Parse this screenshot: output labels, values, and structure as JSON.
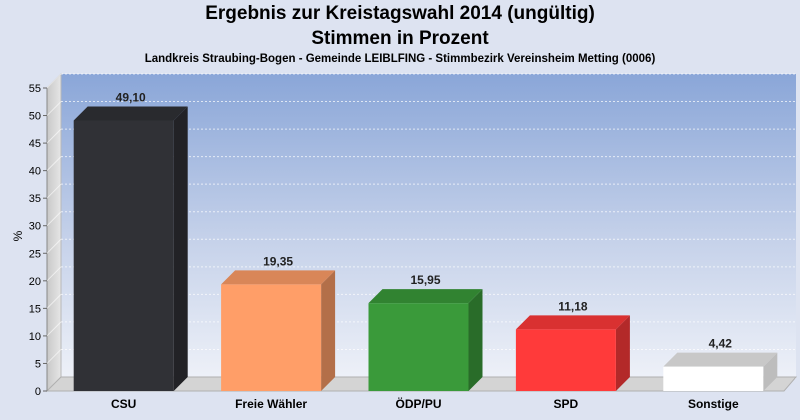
{
  "chart_data": {
    "type": "bar",
    "title": "Ergebnis zur Kreistagswahl 2014 (ungültig)",
    "title2": "Stimmen in Prozent",
    "subtitle": "Landkreis Straubing-Bogen - Gemeinde LEIBLFING - Stimmbezirk Vereinsheim Metting (0006)",
    "ylabel": "%",
    "xlabel": "",
    "ylim": [
      0,
      55
    ],
    "yticks": [
      0,
      5,
      10,
      15,
      20,
      25,
      30,
      35,
      40,
      45,
      50,
      55
    ],
    "categories": [
      "CSU",
      "Freie Wähler",
      "ÖDP/PU",
      "SPD",
      "Sonstige"
    ],
    "values": [
      49.1,
      19.35,
      15.95,
      11.18,
      4.42
    ],
    "value_labels": [
      "49,10",
      "19,35",
      "15,95",
      "11,18",
      "4,42"
    ],
    "colors": [
      "#303136",
      "#ff9e68",
      "#3a9a3a",
      "#ff3a3a",
      "#ffffff"
    ],
    "grid": true,
    "legend": "none"
  }
}
